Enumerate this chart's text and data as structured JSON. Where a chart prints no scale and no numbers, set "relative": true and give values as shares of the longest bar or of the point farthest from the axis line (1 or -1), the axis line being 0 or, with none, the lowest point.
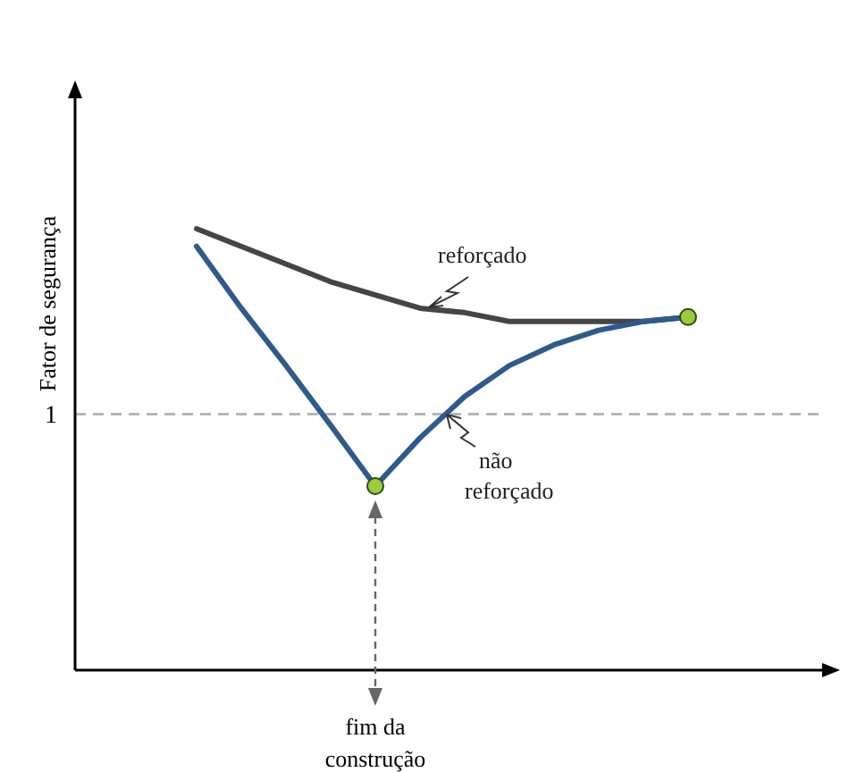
{
  "chart_data": {
    "type": "line",
    "relative": true,
    "ylabel": "Fator de segurança",
    "categories": [
      null,
      null,
      null,
      null,
      null,
      null,
      null,
      null,
      null,
      null,
      null,
      null
    ],
    "series": [
      {
        "name": "reforçado",
        "color": "#454545",
        "values": [
          1.0,
          0.96,
          0.92,
          0.88,
          0.85,
          0.82,
          0.81,
          0.79,
          0.79,
          0.79,
          0.79,
          0.8
        ]
      },
      {
        "name": "não reforçado",
        "color": "#2e5a8c",
        "values": [
          0.96,
          0.82,
          0.69,
          0.555,
          0.417,
          0.526,
          0.62,
          0.69,
          0.737,
          0.77,
          0.79,
          0.8
        ]
      }
    ],
    "ref_lines": [
      {
        "axis": "y",
        "value": 0.58,
        "label": "1",
        "color": "#aaaaaa",
        "line_style": "dashed"
      }
    ],
    "annotations": [
      "fim da construção"
    ],
    "marker": "none",
    "line_style": "solid"
  }
}
